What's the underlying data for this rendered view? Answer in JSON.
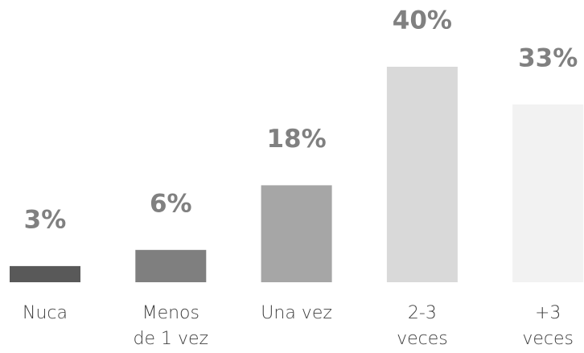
{
  "chart_data": {
    "type": "bar",
    "categories": [
      [
        "Nuca"
      ],
      [
        "Menos",
        "de 1 vez"
      ],
      [
        "Una vez"
      ],
      [
        "2-3",
        "veces"
      ],
      [
        "+3",
        "veces"
      ]
    ],
    "values": [
      3,
      6,
      18,
      40,
      33
    ],
    "value_labels": [
      "3%",
      "6%",
      "18%",
      "40%",
      "33%"
    ],
    "colors": [
      "#595959",
      "#7f7f7f",
      "#a6a6a6",
      "#d9d9d9",
      "#f2f2f2"
    ]
  }
}
